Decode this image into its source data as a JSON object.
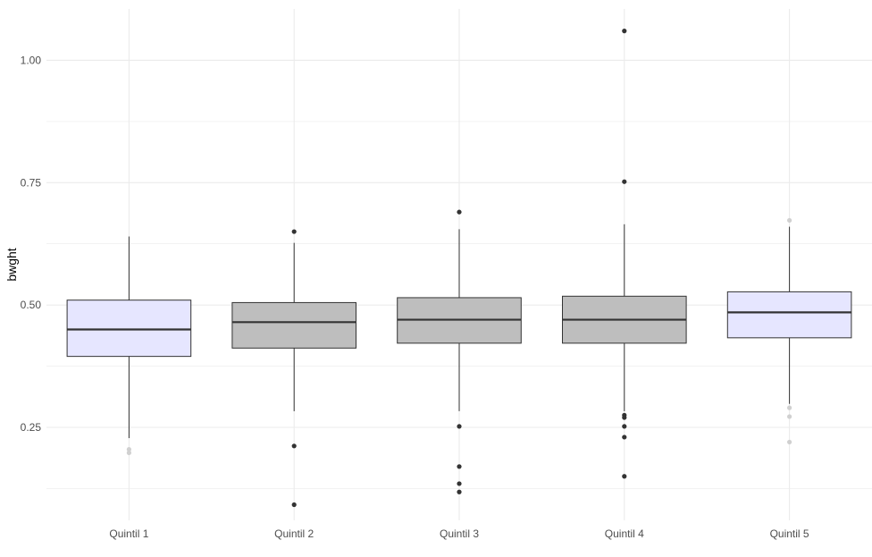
{
  "chart_data": {
    "type": "boxplot",
    "title": "",
    "xlabel": "",
    "ylabel": "bwght",
    "ylim": [
      0.06,
      1.105
    ],
    "yticks": [
      0.25,
      0.5,
      0.75,
      1.0
    ],
    "ytick_labels": [
      "0.25",
      "0.50",
      "0.75",
      "1.00"
    ],
    "minor_gridlines": [
      0.125,
      0.375,
      0.625,
      0.875
    ],
    "grid": true,
    "legend": "none",
    "categories": [
      "Quintil 1",
      "Quintil 2",
      "Quintil 3",
      "Quintil 4",
      "Quintil 5"
    ],
    "boxes": [
      {
        "category": "Quintil 1",
        "q1": 0.395,
        "median": 0.45,
        "q3": 0.51,
        "whisker_low": 0.228,
        "whisker_high": 0.64,
        "outliers": [
          0.205,
          0.198
        ],
        "fill": "#e6e6ff",
        "outlier_style": "faint"
      },
      {
        "category": "Quintil 2",
        "q1": 0.412,
        "median": 0.465,
        "q3": 0.505,
        "whisker_low": 0.283,
        "whisker_high": 0.627,
        "outliers": [
          0.65,
          0.212,
          0.092
        ],
        "fill": "#bebebe",
        "outlier_style": "solid"
      },
      {
        "category": "Quintil 3",
        "q1": 0.422,
        "median": 0.47,
        "q3": 0.515,
        "whisker_low": 0.283,
        "whisker_high": 0.655,
        "outliers": [
          0.69,
          0.252,
          0.17,
          0.135,
          0.118
        ],
        "fill": "#bebebe",
        "outlier_style": "solid"
      },
      {
        "category": "Quintil 4",
        "q1": 0.422,
        "median": 0.47,
        "q3": 0.518,
        "whisker_low": 0.283,
        "whisker_high": 0.665,
        "outliers": [
          1.06,
          0.752,
          0.275,
          0.27,
          0.252,
          0.23,
          0.15
        ],
        "fill": "#bebebe",
        "outlier_style": "solid"
      },
      {
        "category": "Quintil 5",
        "q1": 0.433,
        "median": 0.485,
        "q3": 0.527,
        "whisker_low": 0.298,
        "whisker_high": 0.66,
        "outliers": [
          0.673,
          0.29,
          0.272,
          0.22
        ],
        "fill": "#e6e6ff",
        "outlier_style": "faint"
      }
    ],
    "colors": {
      "grid": "#ebebeb",
      "box_stroke": "#333333",
      "median": "#333333",
      "outlier_solid": "#333333",
      "outlier_faint": "#d0d0d0"
    }
  }
}
